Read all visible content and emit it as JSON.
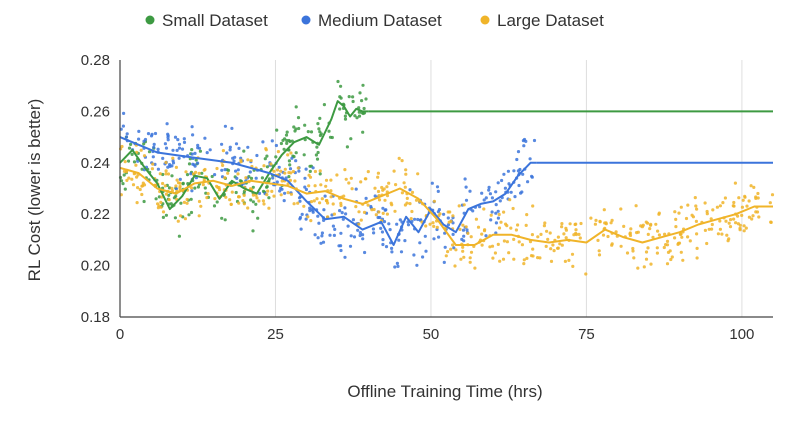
{
  "chart_data": {
    "type": "scatter",
    "title": "",
    "xlabel": "Offline Training Time (hrs)",
    "ylabel": "RL Cost (lower is better)",
    "xlim": [
      0,
      105
    ],
    "ylim": [
      0.18,
      0.28
    ],
    "xticks": [
      0,
      25,
      50,
      75,
      100
    ],
    "xtick_labels": [
      "0",
      "25",
      "50",
      "75",
      "100"
    ],
    "yticks": [
      0.18,
      0.2,
      0.22,
      0.24,
      0.26,
      0.28
    ],
    "ytick_labels": [
      "0.18",
      "0.20",
      "0.22",
      "0.24",
      "0.26",
      "0.28"
    ],
    "grid": "vertical",
    "legend_position": "top",
    "series": [
      {
        "name": "Small Dataset",
        "color": "#3d9a42",
        "smoothed": {
          "x": [
            0,
            2,
            4,
            6,
            8,
            10,
            12,
            14,
            16,
            18,
            20,
            22,
            24,
            26,
            28,
            30,
            32,
            33,
            34,
            35,
            36,
            37,
            38,
            39,
            40
          ],
          "y": [
            0.24,
            0.245,
            0.238,
            0.232,
            0.222,
            0.227,
            0.235,
            0.234,
            0.226,
            0.233,
            0.23,
            0.228,
            0.236,
            0.243,
            0.248,
            0.25,
            0.247,
            0.252,
            0.257,
            0.264,
            0.262,
            0.258,
            0.261,
            0.26,
            0.26
          ]
        },
        "plateau": {
          "x": [
            40,
            105
          ],
          "y": 0.26
        }
      },
      {
        "name": "Medium Dataset",
        "color": "#3b74db",
        "smoothed": {
          "x": [
            0,
            3,
            6,
            9,
            12,
            15,
            18,
            21,
            24,
            27,
            30,
            33,
            36,
            39,
            42,
            44,
            46,
            48,
            50,
            52,
            54,
            56,
            58,
            60,
            62,
            64,
            66,
            67
          ],
          "y": [
            0.25,
            0.247,
            0.244,
            0.243,
            0.242,
            0.241,
            0.24,
            0.238,
            0.236,
            0.233,
            0.225,
            0.218,
            0.219,
            0.214,
            0.217,
            0.208,
            0.219,
            0.213,
            0.222,
            0.216,
            0.213,
            0.222,
            0.224,
            0.225,
            0.228,
            0.235,
            0.24,
            0.24
          ]
        },
        "plateau": {
          "x": [
            67,
            105
          ],
          "y": 0.24
        }
      },
      {
        "name": "Large Dataset",
        "color": "#f0b429",
        "smoothed": {
          "x": [
            0,
            3,
            6,
            9,
            12,
            15,
            18,
            21,
            24,
            27,
            30,
            33,
            36,
            39,
            42,
            45,
            48,
            51,
            54,
            57,
            60,
            63,
            66,
            69,
            72,
            75,
            78,
            81,
            84,
            87,
            90,
            93,
            96,
            99,
            102,
            105
          ],
          "y": [
            0.238,
            0.236,
            0.23,
            0.228,
            0.232,
            0.233,
            0.231,
            0.233,
            0.232,
            0.231,
            0.228,
            0.229,
            0.226,
            0.224,
            0.227,
            0.23,
            0.226,
            0.218,
            0.208,
            0.208,
            0.212,
            0.212,
            0.21,
            0.209,
            0.21,
            0.209,
            0.214,
            0.211,
            0.209,
            0.211,
            0.213,
            0.216,
            0.218,
            0.22,
            0.223,
            0.223
          ]
        }
      }
    ]
  }
}
